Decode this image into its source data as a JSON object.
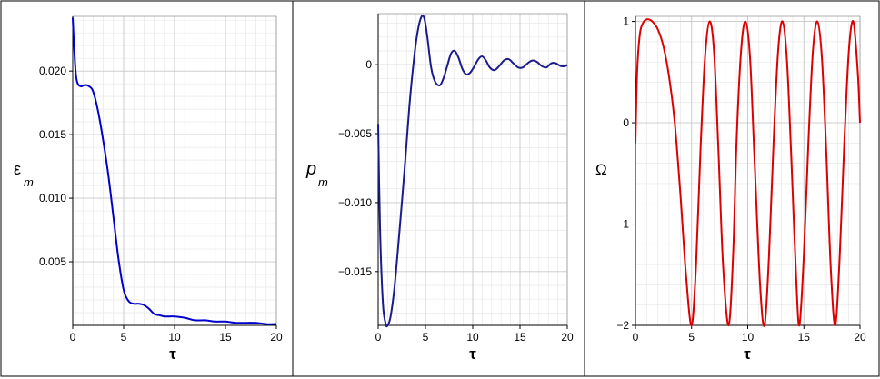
{
  "chart_data": [
    {
      "type": "line",
      "xlabel": "τ",
      "ylabel_main": "ε",
      "ylabel_sub": "m",
      "xlim": [
        0,
        20
      ],
      "ylim": [
        0.0,
        0.0243
      ],
      "xticks": [
        0,
        5,
        10,
        15,
        20
      ],
      "xtick_labels": [
        "0",
        "5",
        "10",
        "15",
        "20"
      ],
      "yticks": [
        0.005,
        0.01,
        0.015,
        0.02
      ],
      "ytick_labels": [
        "0.005",
        "0.010",
        "0.015",
        "0.020"
      ],
      "grid": true,
      "series": [
        {
          "color": "#0000cc",
          "x": [
            0,
            0.1,
            0.3,
            0.5,
            0.8,
            1.2,
            1.6,
            2.0,
            2.5,
            3.0,
            3.5,
            4.0,
            4.5,
            5.0,
            5.5,
            6.0,
            6.5,
            7.0,
            7.5,
            8.0,
            8.5,
            9.0,
            9.5,
            10.0,
            11.0,
            12.0,
            13.0,
            14.0,
            15.0,
            16.0,
            17.0,
            18.0,
            19.0,
            20.0
          ],
          "y": [
            0.0242,
            0.0225,
            0.0198,
            0.019,
            0.0188,
            0.0189,
            0.0188,
            0.0184,
            0.0168,
            0.0145,
            0.0118,
            0.0085,
            0.0052,
            0.0028,
            0.0019,
            0.0017,
            0.0017,
            0.0016,
            0.0013,
            0.0009,
            0.0008,
            0.0007,
            0.0007,
            0.0007,
            0.0006,
            0.0004,
            0.0004,
            0.0003,
            0.0003,
            0.0002,
            0.0002,
            0.0002,
            0.0001,
            0.0001
          ]
        }
      ]
    },
    {
      "type": "line",
      "xlabel": "τ",
      "ylabel_main": "p",
      "ylabel_sub": "m",
      "xlim": [
        0,
        20
      ],
      "ylim": [
        -0.0189,
        0.0037
      ],
      "xticks": [
        0,
        5,
        10,
        15,
        20
      ],
      "xtick_labels": [
        "0",
        "5",
        "10",
        "15",
        "20"
      ],
      "yticks": [
        -0.015,
        -0.01,
        -0.005,
        0
      ],
      "ytick_labels": [
        "−0.015",
        "−0.010",
        "−0.005",
        "0"
      ],
      "grid": true,
      "series": [
        {
          "color": "#1a1a8c",
          "x": [
            0,
            0.2,
            0.5,
            0.8,
            1.0,
            1.3,
            1.7,
            2.2,
            2.8,
            3.3,
            3.8,
            4.2,
            4.6,
            4.9,
            5.2,
            5.6,
            6.0,
            6.5,
            6.9,
            7.3,
            7.7,
            8.1,
            8.5,
            8.9,
            9.3,
            9.7,
            10.1,
            10.6,
            11.0,
            11.4,
            11.8,
            12.3,
            12.8,
            13.3,
            13.8,
            14.3,
            14.8,
            15.3,
            15.8,
            16.3,
            16.8,
            17.3,
            17.8,
            18.3,
            18.8,
            19.3,
            19.8,
            20.0
          ],
          "y": [
            -0.0043,
            -0.012,
            -0.0173,
            -0.0188,
            -0.0189,
            -0.0183,
            -0.0163,
            -0.0125,
            -0.0075,
            -0.003,
            0.0005,
            0.0025,
            0.0035,
            0.0033,
            0.002,
            -0.0002,
            -0.0012,
            -0.0015,
            -0.001,
            -0.0001,
            0.0008,
            0.001,
            0.0005,
            -0.0003,
            -0.0007,
            -0.0006,
            -0.0002,
            0.0004,
            0.0006,
            0.0003,
            -0.0002,
            -0.0004,
            -0.0001,
            0.0003,
            0.0004,
            0.0001,
            -0.0002,
            -0.0002,
            0.0001,
            0.0003,
            0.0002,
            -0.0001,
            -0.0002,
            0.0001,
            0.0001,
            -0.0001,
            -0.0001,
            0.0
          ]
        }
      ]
    },
    {
      "type": "line",
      "xlabel": "τ",
      "ylabel_main": "Ω",
      "ylabel_sub": "",
      "xlim": [
        0,
        20
      ],
      "ylim": [
        -2.0,
        1.05
      ],
      "xticks": [
        0,
        5,
        10,
        15,
        20
      ],
      "xtick_labels": [
        "0",
        "5",
        "10",
        "15",
        "20"
      ],
      "yticks": [
        -2,
        -1,
        0,
        1
      ],
      "ytick_labels": [
        "−2",
        "−1",
        "0",
        "1"
      ],
      "grid": true,
      "series": [
        {
          "color": "#dd0000",
          "x": [
            0,
            0.15,
            0.4,
            0.7,
            1.0,
            1.2,
            1.5,
            2.0,
            2.5,
            3.0,
            3.5,
            4.0,
            4.5,
            5.0,
            5.4,
            5.8,
            6.2,
            6.6,
            7.0,
            7.4,
            7.8,
            8.3,
            8.7,
            9.0,
            9.4,
            9.8,
            10.2,
            10.6,
            11.1,
            11.5,
            11.9,
            12.3,
            12.7,
            13.1,
            13.5,
            13.9,
            14.3,
            14.6,
            15.0,
            15.4,
            15.8,
            16.2,
            16.6,
            17.0,
            17.4,
            17.8,
            18.2,
            18.6,
            19.0,
            19.4,
            19.8,
            20.0
          ],
          "y": [
            -0.2,
            0.5,
            0.88,
            0.99,
            1.02,
            1.02,
            1.0,
            0.92,
            0.75,
            0.45,
            0.0,
            -0.7,
            -1.5,
            -2.0,
            -1.4,
            -0.25,
            0.65,
            1.0,
            0.7,
            -0.3,
            -1.4,
            -2.0,
            -1.3,
            -0.2,
            0.7,
            1.0,
            0.65,
            -0.35,
            -1.6,
            -2.0,
            -1.3,
            -0.2,
            0.7,
            1.0,
            0.6,
            -0.4,
            -1.5,
            -2.0,
            -1.3,
            -0.2,
            0.7,
            1.0,
            0.65,
            -0.3,
            -1.45,
            -2.0,
            -1.3,
            -0.2,
            0.7,
            1.0,
            0.5,
            0.0
          ]
        }
      ]
    }
  ]
}
